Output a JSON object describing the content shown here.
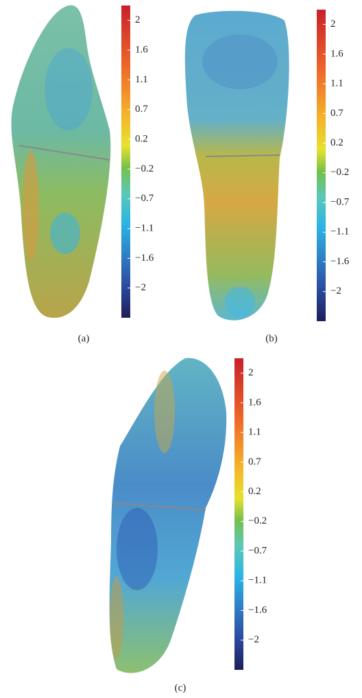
{
  "panels": [
    {
      "caption": "(a)",
      "colorbar_ticks": [
        "2",
        "1.6",
        "1.1",
        "0.7",
        "0.2",
        "−0.2",
        "−0.7",
        "−1.1",
        "−1.6",
        "−2"
      ]
    },
    {
      "caption": "(b)",
      "colorbar_ticks": [
        "2",
        "1.6",
        "1.1",
        "0.7",
        "0.2",
        "−0.2",
        "−0.7",
        "−1.1",
        "−1.6",
        "−2"
      ]
    },
    {
      "caption": "(c)",
      "colorbar_ticks": [
        "2",
        "1.6",
        "1.1",
        "0.7",
        "0.2",
        "−0.2",
        "−0.7",
        "−1.1",
        "−1.6",
        "−2"
      ]
    }
  ]
}
